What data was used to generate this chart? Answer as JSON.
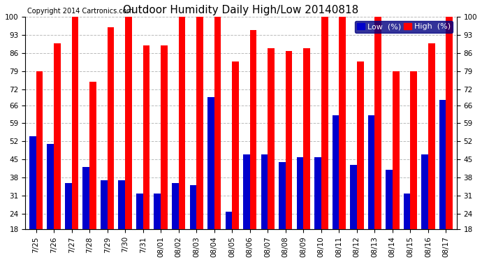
{
  "title": "Outdoor Humidity Daily High/Low 20140818",
  "copyright": "Copyright 2014 Cartronics.com",
  "legend_low_label": "Low  (%)",
  "legend_high_label": "High  (%)",
  "dates": [
    "7/25",
    "7/26",
    "7/27",
    "7/28",
    "7/29",
    "7/30",
    "7/31",
    "08/01",
    "08/02",
    "08/03",
    "08/04",
    "08/05",
    "08/06",
    "08/07",
    "08/08",
    "08/09",
    "08/10",
    "08/11",
    "08/12",
    "08/13",
    "08/14",
    "08/15",
    "08/16",
    "08/17"
  ],
  "high_values": [
    79,
    90,
    100,
    75,
    96,
    100,
    89,
    89,
    100,
    100,
    100,
    83,
    95,
    88,
    87,
    88,
    100,
    100,
    83,
    100,
    79,
    79,
    90,
    100
  ],
  "low_values": [
    54,
    51,
    36,
    42,
    37,
    37,
    32,
    32,
    36,
    35,
    69,
    25,
    47,
    47,
    44,
    46,
    46,
    62,
    43,
    62,
    41,
    32,
    47,
    68
  ],
  "ylim": [
    18,
    100
  ],
  "ymin": 18,
  "yticks": [
    18,
    24,
    31,
    38,
    45,
    52,
    59,
    66,
    72,
    79,
    86,
    93,
    100
  ],
  "bar_width": 0.38,
  "high_color": "#FF0000",
  "low_color": "#0000CC",
  "background_color": "#FFFFFF",
  "grid_color": "#BBBBBB",
  "title_fontsize": 11,
  "tick_fontsize": 7.5,
  "legend_fontsize": 8,
  "copyright_fontsize": 7
}
